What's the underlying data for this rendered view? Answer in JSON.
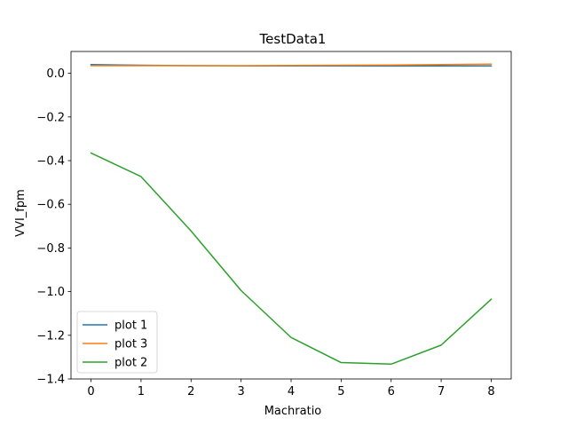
{
  "chart_data": {
    "type": "line",
    "title": "TestData1",
    "xlabel": "Machratio",
    "ylabel": "VVI_fpm",
    "x": [
      0,
      1,
      2,
      3,
      4,
      5,
      6,
      7,
      8
    ],
    "xlim": [
      -0.4,
      8.4
    ],
    "ylim": [
      -1.4,
      0.1
    ],
    "xticks": [
      0,
      1,
      2,
      3,
      4,
      5,
      6,
      7,
      8
    ],
    "yticks": [
      -1.4,
      -1.2,
      -1.0,
      -0.8,
      -0.6,
      -0.4,
      -0.2,
      0.0
    ],
    "ytick_labels": [
      "−1.4",
      "−1.2",
      "−1.0",
      "−0.8",
      "−0.6",
      "−0.4",
      "−0.2",
      "0.0"
    ],
    "grid": false,
    "legend_position": "lower-left",
    "series": [
      {
        "name": "plot 1",
        "color": "#1f77b4",
        "values": [
          0.04,
          0.037,
          0.035,
          0.034,
          0.034,
          0.034,
          0.034,
          0.034,
          0.034
        ]
      },
      {
        "name": "plot 3",
        "color": "#ff7f0e",
        "values": [
          0.035,
          0.035,
          0.035,
          0.035,
          0.036,
          0.037,
          0.038,
          0.04,
          0.042
        ]
      },
      {
        "name": "plot 2",
        "color": "#2ca02c",
        "values": [
          -0.365,
          -0.473,
          -0.722,
          -0.995,
          -1.21,
          -1.325,
          -1.332,
          -1.245,
          -1.035
        ]
      }
    ]
  }
}
